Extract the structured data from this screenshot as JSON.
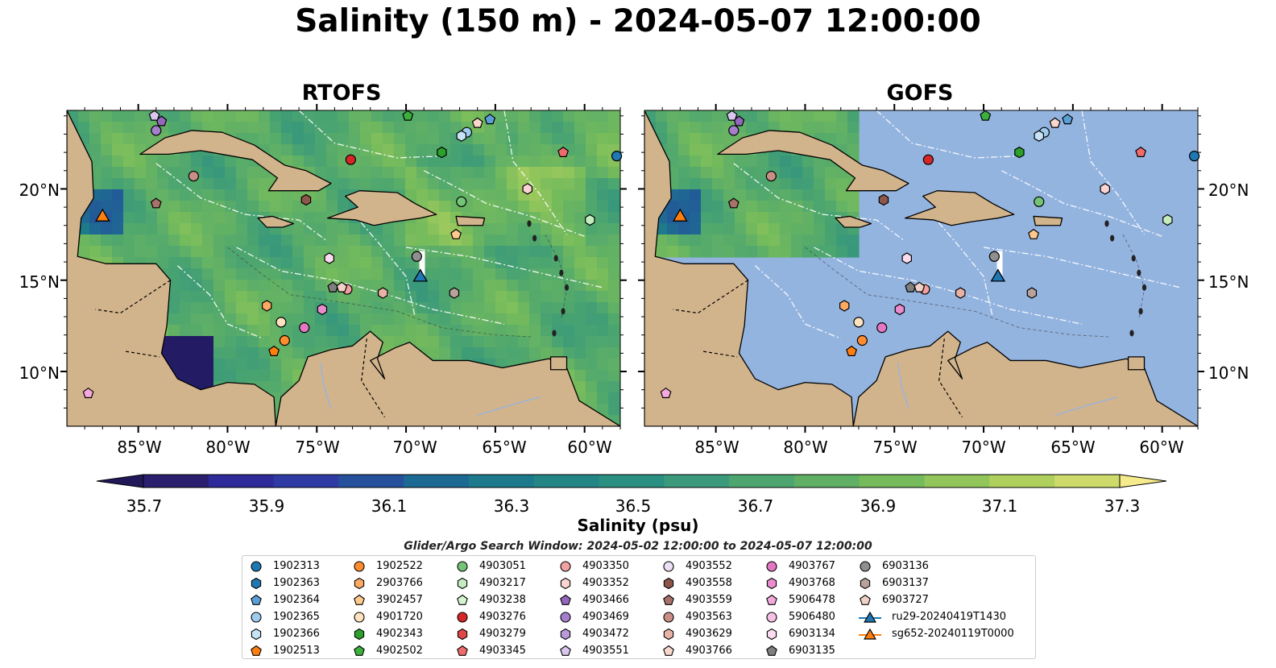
{
  "title": "Salinity (150 m) - 2024-05-07 12:00:00",
  "panels": [
    {
      "title": "RTOFS"
    },
    {
      "title": "GOFS"
    }
  ],
  "axes": {
    "lat_ticks": [
      "10°N",
      "15°N",
      "20°N"
    ],
    "lon_ticks": [
      "85°W",
      "80°W",
      "75°W",
      "70°W",
      "65°W",
      "60°W"
    ]
  },
  "colorbar": {
    "label": "Salinity (psu)",
    "ticks": [
      "35.7",
      "35.9",
      "36.1",
      "36.3",
      "36.5",
      "36.7",
      "36.9",
      "37.1",
      "37.3"
    ],
    "colors": [
      "#2a1e6e",
      "#2e2a99",
      "#2f3aa5",
      "#24509c",
      "#1c6a93",
      "#1c7a8c",
      "#248587",
      "#2b8f82",
      "#3b9a7c",
      "#4da66f",
      "#5fb064",
      "#75bb5c",
      "#92c65a",
      "#b0d05d",
      "#cedb6b"
    ],
    "extend_low": "#21185a",
    "extend_high": "#f5ea8c"
  },
  "search_window": "Glider/Argo Search Window: 2024-05-02 12:00:00 to 2024-05-07 12:00:00",
  "legend": {
    "columns": [
      [
        {
          "label": "1902313",
          "marker": "circle",
          "color": "#1f77b4"
        },
        {
          "label": "1902363",
          "marker": "hexagon",
          "color": "#1f77b4"
        },
        {
          "label": "1902364",
          "marker": "pentagon",
          "color": "#5c9fd6"
        },
        {
          "label": "1902365",
          "marker": "circle",
          "color": "#9fcbec"
        },
        {
          "label": "1902366",
          "marker": "hexagon",
          "color": "#c6e4f6"
        },
        {
          "label": "1902513",
          "marker": "pentagon",
          "color": "#ff7f0e"
        }
      ],
      [
        {
          "label": "1902522",
          "marker": "circle",
          "color": "#ff8c2e"
        },
        {
          "label": "2903766",
          "marker": "hexagon",
          "color": "#ffaa63"
        },
        {
          "label": "3902457",
          "marker": "pentagon",
          "color": "#ffc98e"
        },
        {
          "label": "4901720",
          "marker": "circle",
          "color": "#ffe3c0"
        },
        {
          "label": "4902343",
          "marker": "hexagon",
          "color": "#2ca02c"
        },
        {
          "label": "4902502",
          "marker": "pentagon",
          "color": "#3cb03c"
        }
      ],
      [
        {
          "label": "4903051",
          "marker": "circle",
          "color": "#74c476"
        },
        {
          "label": "4903217",
          "marker": "hexagon",
          "color": "#c4ecbf"
        },
        {
          "label": "4903238",
          "marker": "pentagon",
          "color": "#d8f3d2"
        },
        {
          "label": "4903276",
          "marker": "circle",
          "color": "#d62728"
        },
        {
          "label": "4903279",
          "marker": "hexagon",
          "color": "#e04848"
        },
        {
          "label": "4903345",
          "marker": "pentagon",
          "color": "#f06b6b"
        }
      ],
      [
        {
          "label": "4903350",
          "marker": "circle",
          "color": "#f2a0a0"
        },
        {
          "label": "4903352",
          "marker": "hexagon",
          "color": "#fbd3d3"
        },
        {
          "label": "4903466",
          "marker": "pentagon",
          "color": "#9467bd"
        },
        {
          "label": "4903469",
          "marker": "circle",
          "color": "#a57fcc"
        },
        {
          "label": "4903472",
          "marker": "hexagon",
          "color": "#b99ad9"
        },
        {
          "label": "4903551",
          "marker": "pentagon",
          "color": "#d9c6ee"
        }
      ],
      [
        {
          "label": "4903552",
          "marker": "circle",
          "color": "#ece0f6"
        },
        {
          "label": "4903558",
          "marker": "hexagon",
          "color": "#8c564b"
        },
        {
          "label": "4903559",
          "marker": "pentagon",
          "color": "#a8716a"
        },
        {
          "label": "4903563",
          "marker": "circle",
          "color": "#c98f86"
        },
        {
          "label": "4903629",
          "marker": "hexagon",
          "color": "#e8b2a6"
        },
        {
          "label": "4903766",
          "marker": "pentagon",
          "color": "#f8d8cd"
        }
      ],
      [
        {
          "label": "4903767",
          "marker": "circle",
          "color": "#e377c2"
        },
        {
          "label": "4903768",
          "marker": "hexagon",
          "color": "#ea8ccd"
        },
        {
          "label": "5906478",
          "marker": "pentagon",
          "color": "#f4a9dc"
        },
        {
          "label": "5906480",
          "marker": "circle",
          "color": "#f7c1e5"
        },
        {
          "label": "6903134",
          "marker": "hexagon",
          "color": "#fbdcf0"
        },
        {
          "label": "6903135",
          "marker": "pentagon",
          "color": "#7f7f7f"
        }
      ],
      [
        {
          "label": "6903136",
          "marker": "circle",
          "color": "#8f8f8f"
        },
        {
          "label": "6903137",
          "marker": "hexagon",
          "color": "#b8a29c"
        },
        {
          "label": "6903727",
          "marker": "pentagon",
          "color": "#f2d2c8"
        },
        {
          "label": "ru29-20240419T1430",
          "marker": "triangle-line",
          "color": "#1f77b4"
        },
        {
          "label": "sg652-20240119T0000",
          "marker": "triangle-line",
          "color": "#ff7f0e"
        }
      ]
    ]
  },
  "floats": [
    {
      "id": "1902313",
      "lon": -58.2,
      "lat": 21.8
    },
    {
      "id": "1902364",
      "lon": -65.3,
      "lat": 23.8
    },
    {
      "id": "1902365",
      "lon": -66.6,
      "lat": 23.1
    },
    {
      "id": "1902366",
      "lon": -66.9,
      "lat": 22.9
    },
    {
      "id": "1902513",
      "lon": -77.4,
      "lat": 11.1
    },
    {
      "id": "1902522",
      "lon": -76.8,
      "lat": 11.7
    },
    {
      "id": "2903766",
      "lon": -77.8,
      "lat": 13.6
    },
    {
      "id": "3902457",
      "lon": -67.2,
      "lat": 17.5
    },
    {
      "id": "4901720",
      "lon": -77.0,
      "lat": 12.7
    },
    {
      "id": "4902343",
      "lon": -68.0,
      "lat": 22.0
    },
    {
      "id": "4902502",
      "lon": -69.9,
      "lat": 24.0
    },
    {
      "id": "4903051",
      "lon": -66.9,
      "lat": 19.3
    },
    {
      "id": "4903217",
      "lon": -59.7,
      "lat": 18.3
    },
    {
      "id": "4903276",
      "lon": -73.1,
      "lat": 21.6
    },
    {
      "id": "4903345",
      "lon": -61.2,
      "lat": 22.0
    },
    {
      "id": "4903350",
      "lon": -73.3,
      "lat": 14.5
    },
    {
      "id": "4903352",
      "lon": -63.2,
      "lat": 20.0
    },
    {
      "id": "4903466",
      "lon": -83.7,
      "lat": 23.7
    },
    {
      "id": "4903469",
      "lon": -84.0,
      "lat": 23.2
    },
    {
      "id": "4903551",
      "lon": -84.1,
      "lat": 24.0
    },
    {
      "id": "4903558",
      "lon": -75.6,
      "lat": 19.4
    },
    {
      "id": "4903559",
      "lon": -84.0,
      "lat": 19.2
    },
    {
      "id": "4903563",
      "lon": -81.9,
      "lat": 20.7
    },
    {
      "id": "4903629",
      "lon": -71.3,
      "lat": 14.3
    },
    {
      "id": "4903766",
      "lon": -66.0,
      "lat": 23.6
    },
    {
      "id": "4903767",
      "lon": -75.7,
      "lat": 12.4
    },
    {
      "id": "4903768",
      "lon": -74.7,
      "lat": 13.4
    },
    {
      "id": "5906478",
      "lon": -87.8,
      "lat": 8.8
    },
    {
      "id": "6903134",
      "lon": -74.3,
      "lat": 16.2
    },
    {
      "id": "6903135",
      "lon": -74.1,
      "lat": 14.6
    },
    {
      "id": "6903136",
      "lon": -69.4,
      "lat": 16.3
    },
    {
      "id": "6903137",
      "lon": -67.3,
      "lat": 14.3
    },
    {
      "id": "6903727",
      "lon": -73.6,
      "lat": 14.6
    }
  ],
  "gliders": [
    {
      "id": "ru29-20240419T1430",
      "lon": -69.2,
      "lat": 15.2,
      "color": "#1f77b4"
    },
    {
      "id": "sg652-20240119T0000",
      "lon": -87.0,
      "lat": 18.5,
      "color": "#ff7f0e"
    }
  ],
  "colors": {
    "ocean": "#94b4e0",
    "land": "#d2b48c",
    "coast": "#000000"
  }
}
